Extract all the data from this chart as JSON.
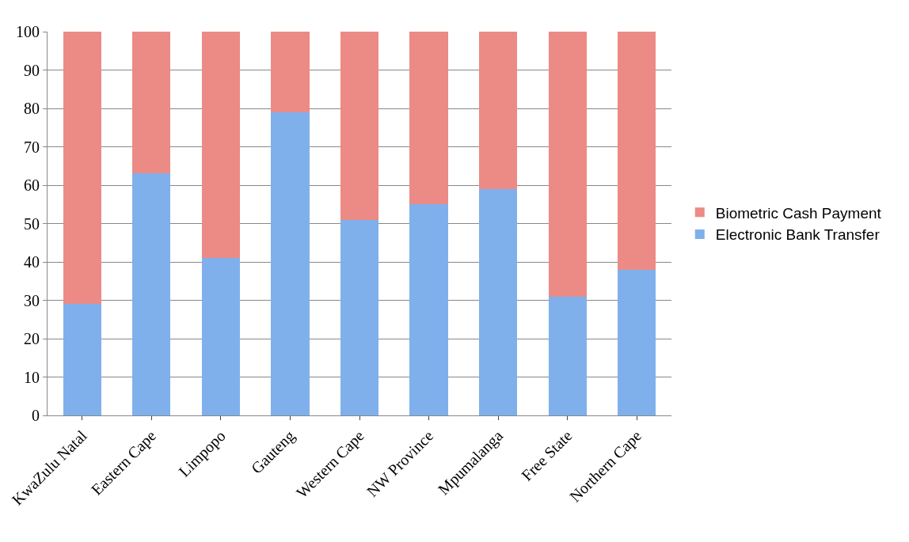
{
  "chart_data": {
    "type": "bar",
    "stacked": true,
    "categories": [
      "KwaZulu Natal",
      "Eastern Cape",
      "Limpopo",
      "Gauteng",
      "Western Cape",
      "NW Province",
      "Mpumalanga",
      "Free State",
      "Northern Cape"
    ],
    "series": [
      {
        "name": "Electronic Bank Transfer",
        "color": "#7fb0ec",
        "values": [
          29,
          63,
          41,
          79,
          51,
          55,
          59,
          31,
          38
        ]
      },
      {
        "name": "Biometric Cash Payment",
        "color": "#ec8a86",
        "values": [
          71,
          37,
          59,
          21,
          49,
          45,
          41,
          69,
          62
        ]
      }
    ],
    "ylim": [
      0,
      100
    ],
    "yticks": [
      0,
      10,
      20,
      30,
      40,
      50,
      60,
      70,
      80,
      90,
      100
    ],
    "grid": "y",
    "legend": "right"
  }
}
